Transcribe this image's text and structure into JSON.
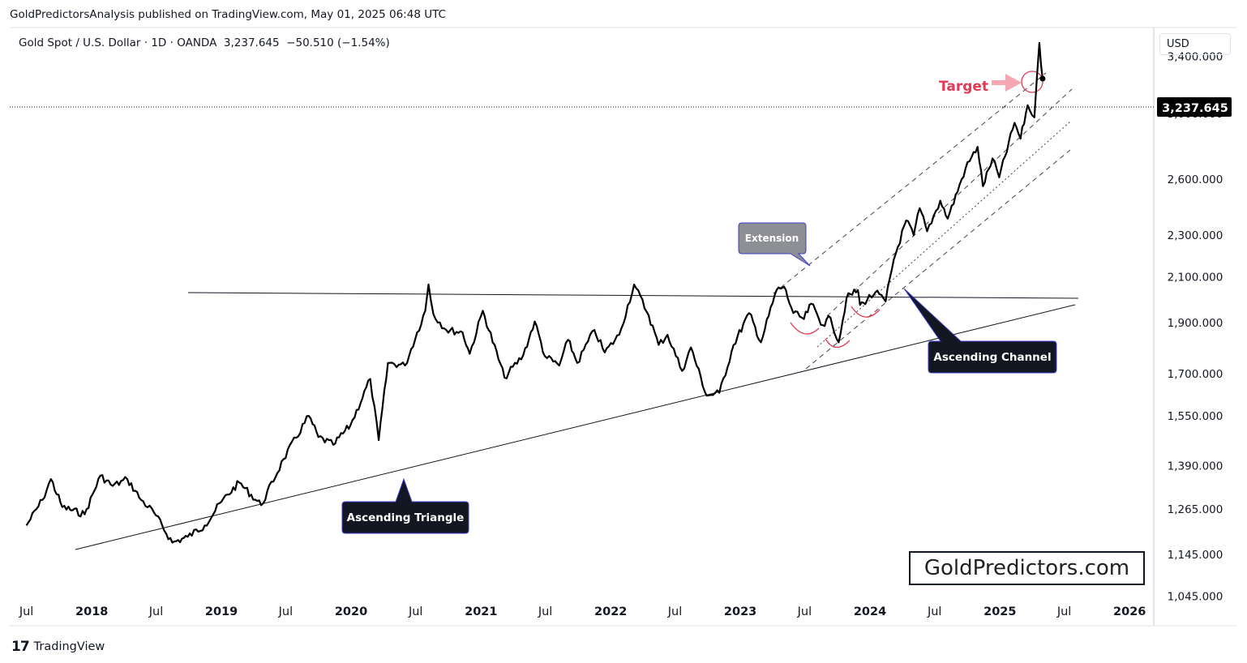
{
  "header": {
    "published_by": "GoldPredictorsAnalysis published on TradingView.com, May 01, 2025 06:48 UTC",
    "symbol_line": "Gold Spot / U.S. Dollar · 1D · OANDA  3,237.645  −50.510 (−1.54%)"
  },
  "price_scale": {
    "currency": "USD",
    "current_price_label": "3,237.645"
  },
  "footer": {
    "logo_glyph": "17",
    "logo_text": "TradingView"
  },
  "watermark": "GoldPredictors.com",
  "annotations": {
    "target": "Target",
    "extension": "Extension",
    "ascending_triangle": "Ascending Triangle",
    "ascending_channel": "Ascending Channel"
  },
  "colors": {
    "price_line": "#000000",
    "target_red": "#e23b55",
    "target_arrow": "#f5a7b3",
    "label_dark_bg": "#131722",
    "label_grey_bg": "#8d8f94",
    "label_border": "#3d3dcc"
  },
  "chart_data": {
    "type": "line",
    "symbol": "Gold Spot / U.S. Dollar",
    "interval": "1D",
    "source": "OANDA",
    "last": 3237.645,
    "change": -50.51,
    "change_pct": -1.54,
    "y_scale": "log",
    "ylim": [
      980,
      3620
    ],
    "y_ticks": [
      1045,
      1145,
      1265,
      1390,
      1550,
      1700,
      1900,
      2100,
      2300,
      2600,
      3000,
      3400
    ],
    "y_tick_labels": [
      "1,045.000",
      "1,145.000",
      "1,265.000",
      "1,390.000",
      "1,550.000",
      "1,700.000",
      "1,900.000",
      "2,100.000",
      "2,300.000",
      "2,600.000",
      "3,000.000",
      "3,400.000"
    ],
    "xlim": [
      "2017-05-15",
      "2026-03-10"
    ],
    "x_ticks": [
      "2017-07-01",
      "2018-01-01",
      "2018-07-01",
      "2019-01-01",
      "2019-07-01",
      "2020-01-01",
      "2020-07-01",
      "2021-01-01",
      "2021-07-01",
      "2022-01-01",
      "2022-07-01",
      "2023-01-01",
      "2023-07-01",
      "2024-01-01",
      "2024-07-01",
      "2025-01-01",
      "2025-07-01",
      "2026-01-01"
    ],
    "x_tick_labels": [
      "Jul",
      "2018",
      "Jul",
      "2019",
      "Jul",
      "2020",
      "Jul",
      "2021",
      "Jul",
      "2022",
      "Jul",
      "2023",
      "Jul",
      "2024",
      "Jul",
      "2025",
      "Jul",
      "2026"
    ],
    "x_tick_bold": [
      false,
      true,
      false,
      true,
      false,
      true,
      false,
      true,
      false,
      true,
      false,
      true,
      false,
      true,
      false,
      true,
      false,
      true
    ],
    "series": [
      {
        "x": [
          "2017-07-01",
          "2017-08-15",
          "2017-09-08",
          "2017-10-10",
          "2017-12-12",
          "2018-01-25",
          "2018-03-01",
          "2018-04-11",
          "2018-05-20",
          "2018-06-25",
          "2018-08-16",
          "2018-09-28",
          "2018-11-15",
          "2019-01-01",
          "2019-02-20",
          "2019-04-23",
          "2019-06-25",
          "2019-09-04",
          "2019-10-01",
          "2019-11-12",
          "2019-12-31",
          "2020-02-24",
          "2020-03-19",
          "2020-04-14",
          "2020-06-01",
          "2020-07-28",
          "2020-08-06",
          "2020-08-20",
          "2020-09-25",
          "2020-11-10",
          "2020-11-30",
          "2021-01-06",
          "2021-03-08",
          "2021-04-30",
          "2021-06-01",
          "2021-06-30",
          "2021-08-09",
          "2021-09-03",
          "2021-09-29",
          "2021-11-16",
          "2021-12-15",
          "2022-01-25",
          "2022-03-08",
          "2022-04-18",
          "2022-05-16",
          "2022-06-10",
          "2022-07-21",
          "2022-08-15",
          "2022-09-28",
          "2022-11-03",
          "2022-12-13",
          "2023-01-26",
          "2023-02-28",
          "2023-04-13",
          "2023-05-04",
          "2023-05-30",
          "2023-06-29",
          "2023-07-20",
          "2023-08-21",
          "2023-09-12",
          "2023-10-05",
          "2023-10-27",
          "2023-11-28",
          "2023-12-04",
          "2023-12-13",
          "2024-01-16",
          "2024-02-14",
          "2024-03-08",
          "2024-04-12",
          "2024-05-03",
          "2024-05-20",
          "2024-06-10",
          "2024-07-17",
          "2024-08-07",
          "2024-09-26",
          "2024-10-30",
          "2024-11-14",
          "2024-12-11",
          "2024-12-30",
          "2025-02-11",
          "2025-02-28",
          "2025-03-20",
          "2025-04-08",
          "2025-04-22",
          "2025-05-01"
        ],
        "y": [
          1220,
          1290,
          1350,
          1270,
          1250,
          1360,
          1330,
          1350,
          1290,
          1255,
          1175,
          1190,
          1220,
          1285,
          1340,
          1275,
          1410,
          1550,
          1480,
          1455,
          1520,
          1680,
          1470,
          1740,
          1730,
          1950,
          2065,
          1935,
          1870,
          1860,
          1775,
          1950,
          1685,
          1770,
          1905,
          1765,
          1730,
          1830,
          1740,
          1870,
          1780,
          1850,
          2065,
          1930,
          1810,
          1850,
          1710,
          1800,
          1620,
          1630,
          1810,
          1940,
          1820,
          2040,
          2055,
          1940,
          1915,
          1980,
          1890,
          1920,
          1820,
          2005,
          2040,
          1975,
          1985,
          2030,
          1990,
          2180,
          2375,
          2300,
          2440,
          2320,
          2480,
          2385,
          2660,
          2790,
          2560,
          2720,
          2610,
          2940,
          2840,
          3055,
          2975,
          3500,
          3237.645
        ]
      }
    ]
  }
}
